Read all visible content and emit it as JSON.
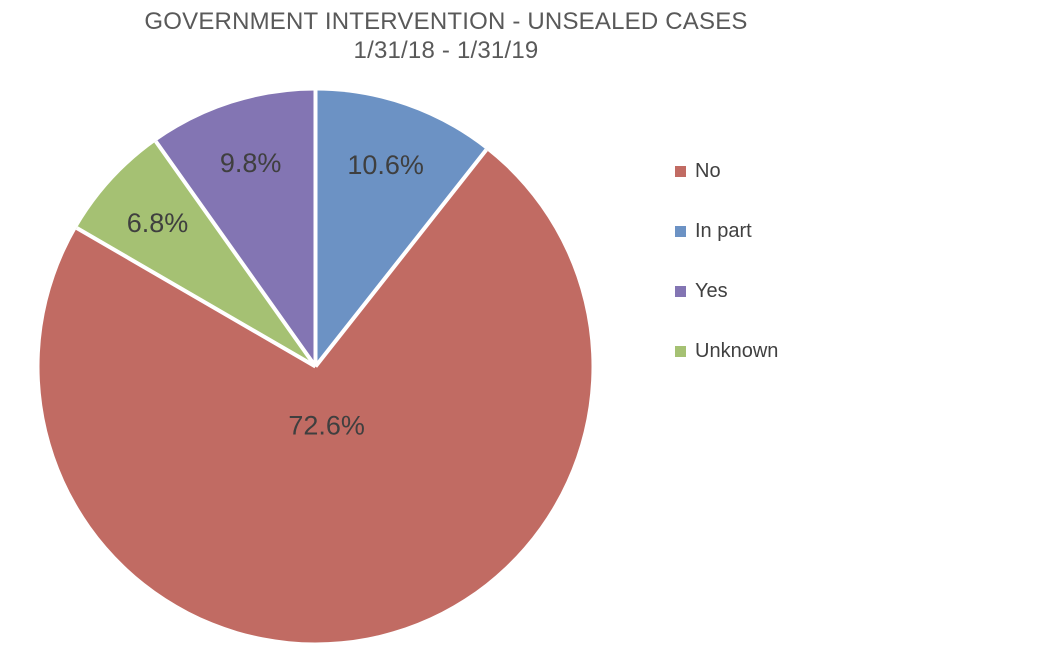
{
  "title": {
    "line1": "GOVERNMENT INTERVENTION - UNSEALED CASES",
    "line2": "1/31/18 - 1/31/19"
  },
  "colors": {
    "title_text": "#595959",
    "label_text": "#3F3F3F",
    "legend_text": "#404040",
    "background": "#ffffff",
    "slice_separator": "#ffffff",
    "no": "#C16B63",
    "in_part": "#6C92C4",
    "yes": "#8375B3",
    "unknown": "#A5C173"
  },
  "chart_data": {
    "type": "pie",
    "title": "GOVERNMENT INTERVENTION - UNSEALED CASES",
    "subtitle": "1/31/18 - 1/31/19",
    "categories": [
      "No",
      "In part",
      "Yes",
      "Unknown"
    ],
    "values": [
      72.6,
      10.6,
      9.8,
      6.8
    ],
    "unit": "%",
    "legend_position": "right",
    "data_labels": "percent-inside",
    "slices_clockwise_from_top": [
      {
        "label": "In part",
        "value": 10.6,
        "display": "10.6%",
        "color": "#6C92C4"
      },
      {
        "label": "No",
        "value": 72.6,
        "display": "72.6%",
        "color": "#C16B63"
      },
      {
        "label": "Unknown",
        "value": 6.8,
        "display": "6.8%",
        "color": "#A5C173"
      },
      {
        "label": "Yes",
        "value": 9.8,
        "display": "9.8%",
        "color": "#8375B3"
      }
    ],
    "legend": [
      {
        "label": "No",
        "color": "#C16B63"
      },
      {
        "label": "In part",
        "color": "#6C92C4"
      },
      {
        "label": "Yes",
        "color": "#8375B3"
      },
      {
        "label": "Unknown",
        "color": "#A5C173"
      }
    ]
  }
}
